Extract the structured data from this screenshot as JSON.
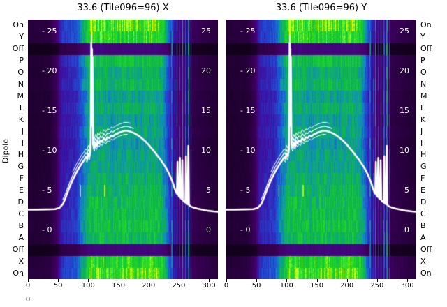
{
  "figure": {
    "bg": "#ffffff",
    "ylabel_left": "Dipole"
  },
  "panels": [
    {
      "title": "33.6 (Tile096=96) X"
    },
    {
      "title": "33.6 (Tile096=96) Y"
    }
  ],
  "dipole_labels": [
    "On",
    "Y",
    "Off",
    "P",
    "O",
    "N",
    "M",
    "L",
    "K",
    "J",
    "I",
    "H",
    "G",
    "F",
    "E",
    "D",
    "C",
    "B",
    "A",
    "Off",
    "X",
    "On"
  ],
  "inner_ticks": {
    "left": [
      "- 25",
      "- 20",
      "- 15",
      "- 10",
      "- 5",
      "- 0"
    ],
    "right": [
      "25",
      "20",
      "15",
      "10",
      "5",
      "0"
    ],
    "values": [
      25,
      20,
      15,
      10,
      5,
      0
    ]
  },
  "x_ticks": [
    0,
    50,
    100,
    150,
    200,
    250,
    300
  ],
  "extra_label_bottom_left": "0",
  "colors": {
    "trace": "#ffffff",
    "inner_tick_text": "#ffffff",
    "label_text": "#000000",
    "colormap": [
      [
        0.0,
        "#0d0014"
      ],
      [
        0.14,
        "#45006a"
      ],
      [
        0.3,
        "#3a14a6"
      ],
      [
        0.45,
        "#1f4fd8"
      ],
      [
        0.58,
        "#0e93b4"
      ],
      [
        0.72,
        "#10b944"
      ],
      [
        0.88,
        "#25e025"
      ],
      [
        1.0,
        "#ffff00"
      ]
    ]
  },
  "chart_data": [
    {
      "type": "heatmap",
      "title": "33.6 (Tile096=96) X",
      "xlabel": "",
      "ylabel": "Dipole",
      "x_range": [
        0,
        315
      ],
      "x_ticks": [
        0,
        50,
        100,
        150,
        200,
        250,
        300
      ],
      "rows": [
        "On",
        "Y",
        "Off",
        "P",
        "O",
        "N",
        "M",
        "L",
        "K",
        "J",
        "I",
        "H",
        "G",
        "F",
        "E",
        "D",
        "C",
        "B",
        "A",
        "Off",
        "X",
        "On"
      ],
      "power_ticks": [
        25,
        20,
        15,
        10,
        5,
        0
      ],
      "column_profile": [
        [
          0,
          0.06
        ],
        [
          35,
          0.07
        ],
        [
          48,
          0.14
        ],
        [
          55,
          0.38
        ],
        [
          80,
          0.45
        ],
        [
          88,
          0.6
        ],
        [
          100,
          0.82
        ],
        [
          120,
          0.86
        ],
        [
          140,
          0.8
        ],
        [
          160,
          0.86
        ],
        [
          185,
          0.82
        ],
        [
          210,
          0.86
        ],
        [
          222,
          0.8
        ],
        [
          230,
          0.6
        ],
        [
          238,
          0.35
        ],
        [
          248,
          0.22
        ],
        [
          262,
          0.17
        ],
        [
          272,
          0.11
        ],
        [
          300,
          0.08
        ],
        [
          315,
          0.07
        ]
      ],
      "row_factors": [
        1.05,
        1.0,
        0.22,
        0.88,
        0.8,
        0.85,
        0.75,
        0.8,
        0.74,
        0.78,
        0.72,
        0.75,
        0.77,
        0.8,
        0.84,
        0.86,
        0.88,
        0.9,
        0.86,
        0.22,
        1.0,
        1.05
      ],
      "stripes": [
        {
          "x": 238,
          "v": 0.5
        },
        {
          "x": 243,
          "v": 0.4
        },
        {
          "x": 247,
          "v": 0.55
        },
        {
          "x": 251,
          "v": 0.38
        },
        {
          "x": 256,
          "v": 0.62
        },
        {
          "x": 261,
          "v": 0.45
        },
        {
          "x": 266,
          "v": 0.55
        },
        {
          "x": 270,
          "v": 0.4
        }
      ],
      "hot_marks": [
        {
          "x": 105,
          "row_start": 0,
          "row_end": 1,
          "v": 1.0
        },
        {
          "x": 87,
          "row_start": 14,
          "row_end": 14,
          "v": 0.97
        },
        {
          "x": 127,
          "row_start": 14,
          "row_end": 14,
          "v": 0.95
        }
      ],
      "overlay": {
        "type": "line",
        "color": "#ffffff",
        "points": [
          [
            0,
            2.6
          ],
          [
            15,
            2.6
          ],
          [
            30,
            2.62
          ],
          [
            45,
            2.65
          ],
          [
            52,
            2.8
          ],
          [
            58,
            3.3
          ],
          [
            62,
            4.0
          ],
          [
            66,
            4.8
          ],
          [
            70,
            5.6
          ],
          [
            74,
            6.3
          ],
          [
            78,
            6.9
          ],
          [
            82,
            7.5
          ],
          [
            86,
            8.0
          ],
          [
            90,
            8.5
          ],
          [
            93,
            8.8
          ],
          [
            96,
            9.2
          ],
          [
            98,
            9.0
          ],
          [
            100,
            9.6
          ],
          [
            102,
            9.3
          ],
          [
            104,
            10.2
          ],
          [
            105,
            23.6
          ],
          [
            106,
            13.5
          ],
          [
            107,
            21.8
          ],
          [
            108,
            10.8
          ],
          [
            110,
            10.4
          ],
          [
            112,
            11.0
          ],
          [
            114,
            10.6
          ],
          [
            116,
            11.2
          ],
          [
            118,
            10.9
          ],
          [
            120,
            11.3
          ],
          [
            123,
            11.1
          ],
          [
            126,
            11.6
          ],
          [
            129,
            11.3
          ],
          [
            132,
            11.7
          ],
          [
            135,
            11.6
          ],
          [
            138,
            11.9
          ],
          [
            141,
            11.8
          ],
          [
            144,
            12.0
          ],
          [
            148,
            12.15
          ],
          [
            152,
            12.3
          ],
          [
            156,
            12.4
          ],
          [
            160,
            12.5
          ],
          [
            165,
            12.5
          ],
          [
            170,
            12.4
          ],
          [
            175,
            12.25
          ],
          [
            180,
            12.05
          ],
          [
            185,
            11.8
          ],
          [
            190,
            11.5
          ],
          [
            195,
            11.15
          ],
          [
            200,
            10.75
          ],
          [
            205,
            10.3
          ],
          [
            210,
            9.85
          ],
          [
            215,
            9.35
          ],
          [
            220,
            8.85
          ],
          [
            225,
            8.3
          ],
          [
            230,
            7.7
          ],
          [
            234,
            7.1
          ],
          [
            238,
            6.4
          ],
          [
            241,
            5.8
          ],
          [
            243,
            5.3
          ],
          [
            245,
            4.9
          ],
          [
            247,
            4.6
          ],
          [
            248,
            8.6
          ],
          [
            249,
            4.5
          ],
          [
            251,
            4.2
          ],
          [
            252,
            9.1
          ],
          [
            253,
            4.1
          ],
          [
            255,
            3.9
          ],
          [
            256,
            8.8
          ],
          [
            257,
            3.8
          ],
          [
            259,
            3.6
          ],
          [
            261,
            3.5
          ],
          [
            262,
            9.3
          ],
          [
            263,
            3.4
          ],
          [
            265,
            3.25
          ],
          [
            266,
            10.6
          ],
          [
            267,
            3.2
          ],
          [
            269,
            3.05
          ],
          [
            271,
            2.95
          ],
          [
            274,
            2.88
          ],
          [
            277,
            2.8
          ],
          [
            281,
            2.72
          ],
          [
            285,
            2.65
          ],
          [
            289,
            2.58
          ],
          [
            293,
            2.52
          ],
          [
            297,
            2.47
          ],
          [
            302,
            2.42
          ],
          [
            308,
            2.37
          ],
          [
            315,
            2.33
          ]
        ],
        "echoes": [
          {
            "dv": 0.55,
            "range": [
              58,
              178
            ],
            "lw": 1.2
          },
          {
            "dv": 1.05,
            "range": [
              72,
              170
            ],
            "lw": 1.0
          },
          {
            "dv": -0.45,
            "range": [
              95,
              168
            ],
            "lw": 1.0
          }
        ]
      }
    },
    {
      "type": "heatmap",
      "title": "33.6 (Tile096=96) Y",
      "same_data_as_panel": 0
    }
  ]
}
